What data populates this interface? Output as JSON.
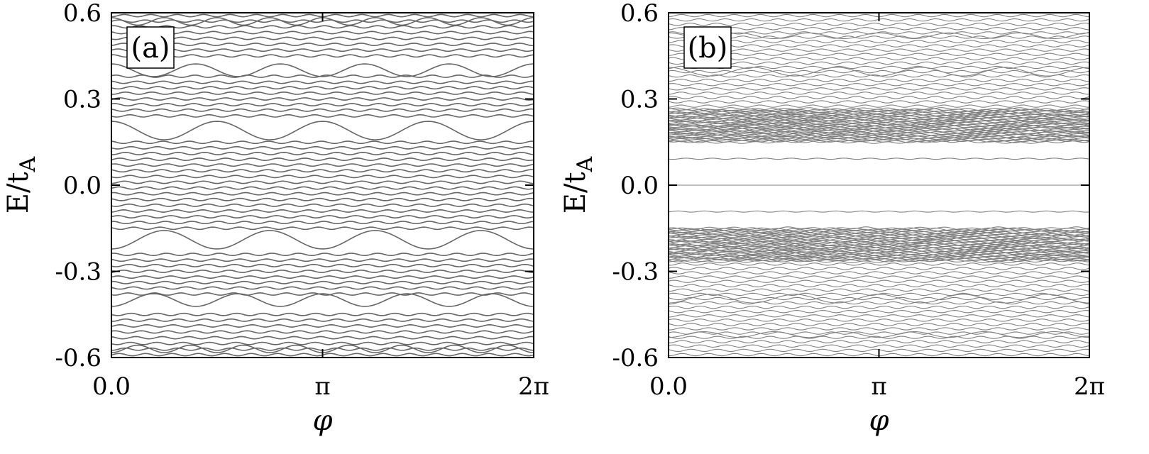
{
  "figure": {
    "xlabel": "φ",
    "ylabel_main": "E/t",
    "ylabel_sub": "A"
  },
  "chart_data": [
    {
      "type": "line",
      "panel_label": "(a)",
      "xlabel": "φ",
      "ylabel": "E/tA",
      "xlim": [
        0,
        6.2832
      ],
      "ylim": [
        -0.6,
        0.6
      ],
      "xticks": [
        0,
        3.1416,
        6.2832
      ],
      "xtick_labels": [
        "0.0",
        "π",
        "2π"
      ],
      "yticks": [
        0.6,
        0.3,
        0.0,
        -0.3,
        -0.6
      ],
      "ytick_labels": [
        "0.6",
        "0.3",
        "0.0",
        "-0.3",
        "-0.6"
      ],
      "grid": false,
      "line_color": "#666666",
      "series_description": "Energy levels vs flux; many nearly flat levels with small ripples, plus larger-amplitude oscillating levels",
      "flat_levels": [
        0.59,
        0.571,
        0.551,
        0.531,
        0.511,
        0.49,
        0.47,
        0.45,
        0.379,
        0.358,
        0.339,
        0.32,
        0.3,
        0.28,
        0.261,
        0.241,
        0.149,
        0.13,
        0.11,
        0.09,
        0.07,
        0.05,
        0.03,
        0.01,
        -0.01,
        -0.03,
        -0.05,
        -0.07,
        -0.09,
        -0.11,
        -0.13,
        -0.15,
        -0.241,
        -0.261,
        -0.28,
        -0.3,
        -0.32,
        -0.339,
        -0.358,
        -0.379,
        -0.45,
        -0.47,
        -0.49,
        -0.511,
        -0.531,
        -0.551,
        -0.571,
        -0.59
      ],
      "flat_ripple_amplitude": 0.004,
      "oscillating_levels": [
        {
          "center": 0.57,
          "amplitude": 0.013,
          "periods": 8
        },
        {
          "center": 0.4,
          "amplitude": 0.022,
          "periods": 5
        },
        {
          "center": 0.19,
          "amplitude": 0.032,
          "periods": 4
        },
        {
          "center": -0.19,
          "amplitude": 0.032,
          "periods": 4
        },
        {
          "center": -0.4,
          "amplitude": 0.022,
          "periods": 5
        },
        {
          "center": -0.57,
          "amplitude": 0.013,
          "periods": 8
        }
      ]
    },
    {
      "type": "line",
      "panel_label": "(b)",
      "xlabel": "φ",
      "ylabel": "E/tA",
      "xlim": [
        0,
        6.2832
      ],
      "ylim": [
        -0.6,
        0.6
      ],
      "xticks": [
        0,
        3.1416,
        6.2832
      ],
      "xtick_labels": [
        "0.0",
        "π",
        "2π"
      ],
      "yticks": [
        0.6,
        0.3,
        0.0,
        -0.3,
        -0.6
      ],
      "ytick_labels": [
        "0.6",
        "0.3",
        "0.0",
        "-0.3",
        "-0.6"
      ],
      "grid": false,
      "line_color": "#808080",
      "series_description": "Energy levels vs flux; dense bands near ±0.15..±0.26, a single level at 0, a gap around 0, sparser levels toward ±0.6",
      "band_upper": [
        0.15,
        0.265
      ],
      "band_lower": [
        -0.265,
        -0.15
      ],
      "band_level_count": 40,
      "zero_level": 0.0,
      "gap_edges": [
        0.092,
        -0.092
      ],
      "outer_levels_upper": [
        0.59,
        0.575,
        0.56,
        0.545,
        0.53,
        0.515,
        0.5,
        0.485,
        0.47,
        0.455,
        0.44,
        0.425,
        0.41,
        0.395,
        0.38,
        0.365,
        0.35,
        0.335,
        0.32,
        0.305,
        0.29,
        0.275
      ],
      "outer_levels_lower": [
        -0.275,
        -0.29,
        -0.305,
        -0.32,
        -0.335,
        -0.35,
        -0.365,
        -0.38,
        -0.395,
        -0.41,
        -0.425,
        -0.44,
        -0.455,
        -0.47,
        -0.485,
        -0.5,
        -0.515,
        -0.53,
        -0.545,
        -0.56,
        -0.575,
        -0.59
      ],
      "oscillating_levels": [
        {
          "center": 0.395,
          "amplitude": 0.015,
          "periods": 5
        },
        {
          "center": -0.395,
          "amplitude": 0.015,
          "periods": 5
        },
        {
          "center": 0.52,
          "amplitude": 0.01,
          "periods": 6
        },
        {
          "center": -0.52,
          "amplitude": 0.01,
          "periods": 6
        }
      ],
      "ripple_amplitude": 0.004
    }
  ]
}
